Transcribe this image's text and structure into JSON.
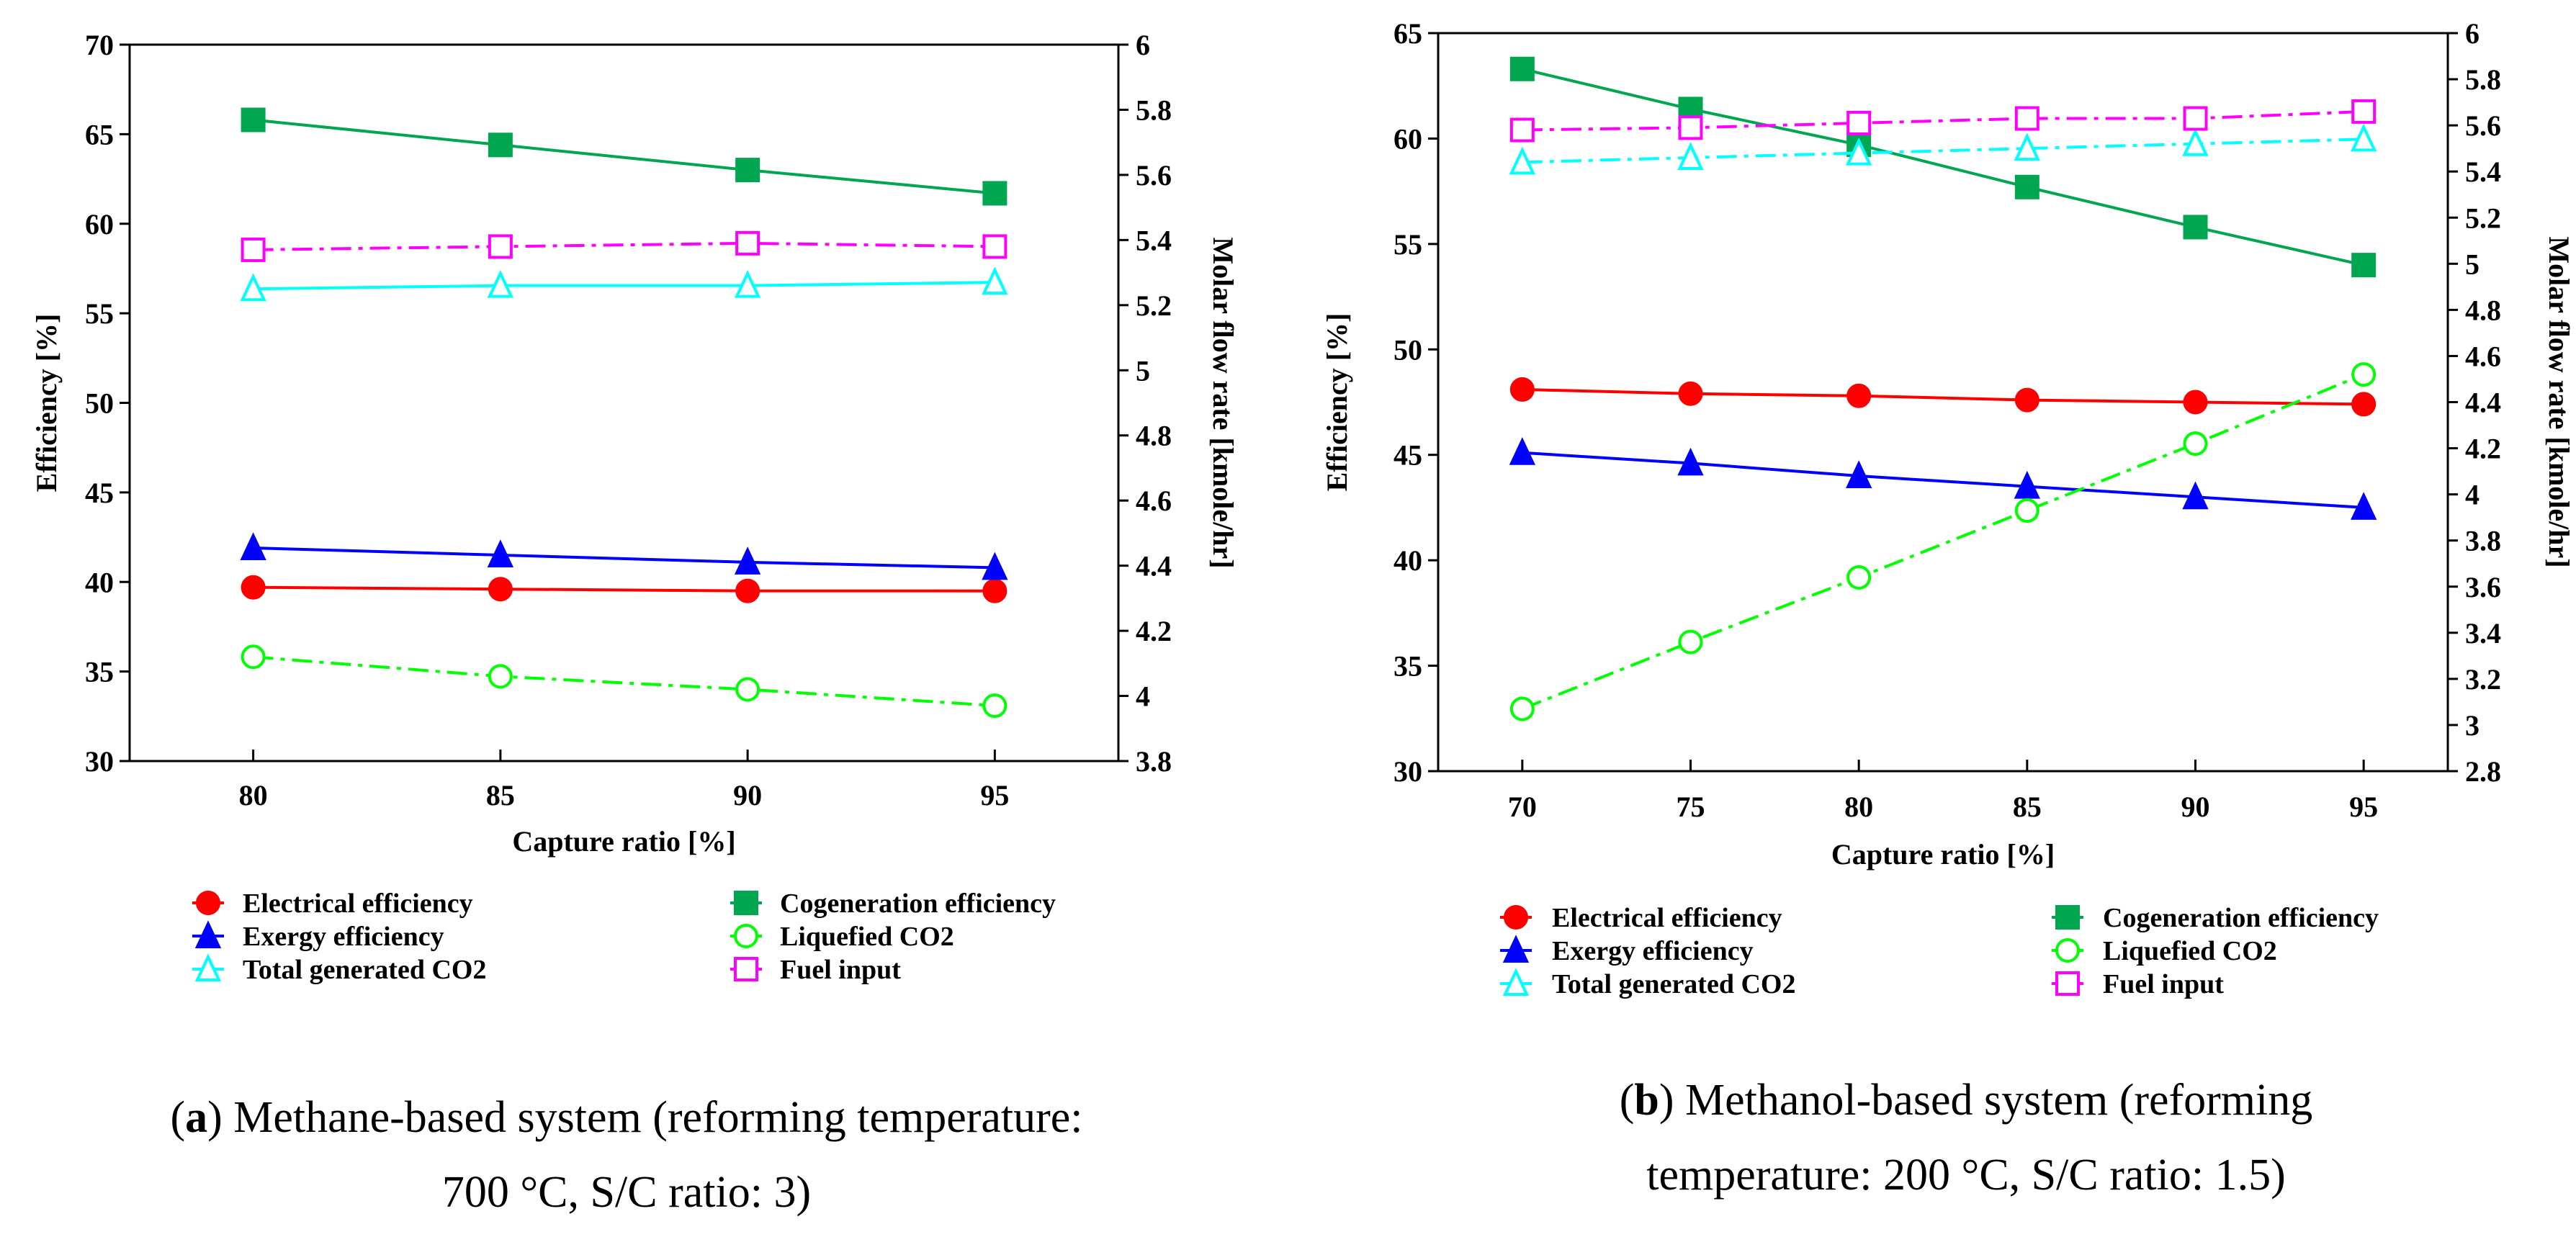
{
  "chart_data": [
    {
      "type": "line",
      "panel": "a",
      "x": [
        80,
        85,
        90,
        95
      ],
      "xlabel": "Capture ratio [%]",
      "ylabel": "Efficiency [%]",
      "y2label": "Molar flow rate [kmole/hr]",
      "xlim": [
        77.5,
        97.5
      ],
      "xticks": [
        80,
        85,
        90,
        95
      ],
      "ylim": [
        30,
        70
      ],
      "yticks": [
        30,
        35,
        40,
        45,
        50,
        55,
        60,
        65,
        70
      ],
      "y2lim": [
        3.8,
        6.0
      ],
      "y2ticks": [
        "3.8",
        "4",
        "4.2",
        "4.4",
        "4.6",
        "4.8",
        "5",
        "5.2",
        "5.4",
        "5.6",
        "5.8",
        "6"
      ],
      "grid": false,
      "legend_placement": "bottom",
      "series": [
        {
          "name": "Electrical efficiency",
          "axis": "left",
          "color": "#ff0000",
          "marker": "circle-filled",
          "dash": "solid",
          "values": [
            39.7,
            39.6,
            39.5,
            39.5
          ]
        },
        {
          "name": "Cogeneration efficiency",
          "axis": "left",
          "color": "#00a650",
          "marker": "square-filled",
          "dash": "solid",
          "values": [
            65.8,
            64.4,
            63.0,
            61.7
          ]
        },
        {
          "name": "Exergy efficiency",
          "axis": "left",
          "color": "#0000ff",
          "marker": "triangle-filled",
          "dash": "solid",
          "values": [
            41.9,
            41.5,
            41.1,
            40.8
          ]
        },
        {
          "name": "Liquefied CO2",
          "axis": "right",
          "color": "#00ff00",
          "marker": "circle-open",
          "dash": "dashdot",
          "values": [
            4.12,
            4.06,
            4.02,
            3.97
          ]
        },
        {
          "name": "Total generated CO2",
          "axis": "right",
          "color": "#00ffff",
          "marker": "triangle-open",
          "dash": "solid",
          "values": [
            5.25,
            5.26,
            5.26,
            5.27
          ]
        },
        {
          "name": "Fuel input",
          "axis": "right",
          "color": "#ff00ff",
          "marker": "square-open",
          "dash": "dashdot",
          "values": [
            5.37,
            5.38,
            5.39,
            5.38
          ]
        }
      ]
    },
    {
      "type": "line",
      "panel": "b",
      "x": [
        70,
        75,
        80,
        85,
        90,
        95
      ],
      "xlabel": "Capture ratio [%]",
      "ylabel": "Efficiency [%]",
      "y2label": "Molar flow rate [kmole/hr]",
      "xlim": [
        67.5,
        97.5
      ],
      "xticks": [
        70,
        75,
        80,
        85,
        90,
        95
      ],
      "ylim": [
        30,
        65
      ],
      "yticks": [
        30,
        35,
        40,
        45,
        50,
        55,
        60,
        65
      ],
      "y2lim": [
        2.8,
        6.0
      ],
      "y2ticks": [
        "2.8",
        "3",
        "3.2",
        "3.4",
        "3.6",
        "3.8",
        "4",
        "4.2",
        "4.4",
        "4.6",
        "4.8",
        "5",
        "5.2",
        "5.4",
        "5.6",
        "5.8",
        "6"
      ],
      "grid": false,
      "legend_placement": "bottom",
      "series": [
        {
          "name": "Electrical efficiency",
          "axis": "left",
          "color": "#ff0000",
          "marker": "circle-filled",
          "dash": "solid",
          "values": [
            48.1,
            47.9,
            47.8,
            47.6,
            47.5,
            47.4
          ]
        },
        {
          "name": "Cogeneration efficiency",
          "axis": "left",
          "color": "#00a650",
          "marker": "square-filled",
          "dash": "solid",
          "values": [
            63.3,
            61.4,
            59.7,
            57.7,
            55.8,
            54.0
          ]
        },
        {
          "name": "Exergy efficiency",
          "axis": "left",
          "color": "#0000ff",
          "marker": "triangle-filled",
          "dash": "solid",
          "values": [
            45.1,
            44.6,
            44.0,
            43.5,
            43.0,
            42.5
          ]
        },
        {
          "name": "Liquefied CO2",
          "axis": "right",
          "color": "#00ff00",
          "marker": "circle-open",
          "dash": "dashdot",
          "values": [
            3.07,
            3.36,
            3.64,
            3.93,
            4.22,
            4.52
          ]
        },
        {
          "name": "Total generated CO2",
          "axis": "right",
          "color": "#00ffff",
          "marker": "triangle-open",
          "dash": "dashdot",
          "values": [
            5.44,
            5.46,
            5.48,
            5.5,
            5.52,
            5.54
          ]
        },
        {
          "name": "Fuel input",
          "axis": "right",
          "color": "#ff00ff",
          "marker": "square-open",
          "dash": "dashdot",
          "values": [
            5.58,
            5.59,
            5.61,
            5.63,
            5.63,
            5.66
          ]
        }
      ]
    }
  ],
  "captions": [
    {
      "label": "a",
      "line1": ") Methane-based system (reforming temperature:",
      "line2": "700 °C, S/C ratio: 3)"
    },
    {
      "label": "b",
      "line1": ") Methanol-based system (reforming",
      "line2": "temperature: 200 °C, S/C ratio: 1.5)"
    }
  ]
}
